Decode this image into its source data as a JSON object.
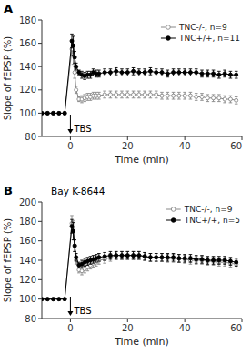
{
  "chart_data": [
    {
      "type": "line",
      "title": "A",
      "xlabel": "Time (min)",
      "ylabel": "Slope of fEPSP (%)",
      "xlim": [
        -10,
        60
      ],
      "xticks": [
        0,
        20,
        40,
        60
      ],
      "ylim": [
        80,
        180
      ],
      "yticks": [
        80,
        100,
        120,
        140,
        160,
        180
      ],
      "grid": false,
      "legend": "upper right",
      "annotations": [
        {
          "text": "TBS",
          "x": 0
        }
      ],
      "series": [
        {
          "name": "TNC-/-, n=9",
          "color": "#888888",
          "marker": "open-circle",
          "x": [
            -10,
            -8,
            -6,
            -4,
            -2,
            0.5,
            1,
            1.5,
            2,
            3,
            4,
            5,
            6,
            7,
            8,
            9,
            10,
            12,
            14,
            16,
            18,
            20,
            22,
            24,
            26,
            28,
            30,
            32,
            34,
            36,
            38,
            40,
            42,
            44,
            46,
            48,
            50,
            52,
            54,
            56,
            58
          ],
          "values": [
            100,
            100,
            100,
            100,
            100,
            155,
            150,
            135,
            120,
            112,
            112,
            113,
            114,
            114,
            115,
            115,
            115,
            116,
            116,
            116,
            116,
            116,
            116,
            116,
            116,
            116,
            116,
            115,
            115,
            115,
            115,
            115,
            115,
            114,
            114,
            113,
            113,
            113,
            112,
            112,
            111
          ],
          "errors": [
            1,
            1,
            1,
            1,
            1,
            6,
            8,
            5,
            3,
            2,
            3,
            3,
            3,
            3,
            3,
            3,
            3,
            3,
            3,
            3,
            3,
            3,
            3,
            3,
            3,
            3,
            3,
            3,
            3,
            3,
            3,
            3,
            3,
            3,
            3,
            3,
            3,
            3,
            3,
            3,
            3
          ]
        },
        {
          "name": "TNC+/+, n=11",
          "color": "#000000",
          "marker": "circle",
          "x": [
            -10,
            -8,
            -6,
            -4,
            -2,
            0.5,
            1,
            1.5,
            2,
            3,
            4,
            5,
            6,
            7,
            8,
            9,
            10,
            12,
            14,
            16,
            18,
            20,
            22,
            24,
            26,
            28,
            30,
            32,
            34,
            36,
            38,
            40,
            42,
            44,
            46,
            48,
            50,
            52,
            54,
            56,
            58
          ],
          "values": [
            100,
            100,
            100,
            100,
            100,
            162,
            158,
            148,
            140,
            135,
            133,
            132,
            133,
            133,
            135,
            134,
            134,
            135,
            135,
            136,
            135,
            135,
            136,
            135,
            135,
            136,
            135,
            135,
            134,
            135,
            135,
            135,
            135,
            135,
            134,
            134,
            134,
            133,
            134,
            133,
            133
          ],
          "errors": [
            1,
            1,
            1,
            1,
            1,
            6,
            8,
            5,
            3,
            2,
            3,
            3,
            3,
            3,
            3,
            3,
            3,
            3,
            3,
            3,
            3,
            3,
            3,
            3,
            3,
            3,
            3,
            3,
            3,
            3,
            3,
            3,
            3,
            3,
            3,
            3,
            3,
            3,
            3,
            3,
            3
          ]
        }
      ]
    },
    {
      "type": "line",
      "title": "B",
      "xlabel": "Time (min)",
      "ylabel": "Slope of fEPSP (%)",
      "xlim": [
        -10,
        60
      ],
      "xticks": [
        0,
        20,
        40,
        60
      ],
      "ylim": [
        80,
        200
      ],
      "yticks": [
        80,
        100,
        120,
        140,
        160,
        180,
        200
      ],
      "grid": false,
      "legend": "upper right",
      "annotations": [
        {
          "text": "Bay K-8644"
        },
        {
          "text": "TBS",
          "x": 0
        }
      ],
      "series": [
        {
          "name": "TNC-/-, n=9",
          "color": "#888888",
          "marker": "open-circle",
          "x": [
            -10,
            -8,
            -6,
            -4,
            -2,
            0.5,
            1,
            1.5,
            2,
            3,
            4,
            5,
            6,
            7,
            8,
            9,
            10,
            12,
            14,
            16,
            18,
            20,
            22,
            24,
            26,
            28,
            30,
            32,
            34,
            36,
            38,
            40,
            42,
            44,
            46,
            48,
            50,
            52,
            54,
            56,
            58
          ],
          "values": [
            100,
            100,
            100,
            100,
            100,
            178,
            172,
            155,
            140,
            130,
            129,
            131,
            133,
            135,
            137,
            138,
            140,
            141,
            143,
            145,
            145,
            145,
            145,
            145,
            144,
            143,
            143,
            143,
            142,
            142,
            142,
            141,
            140,
            140,
            140,
            139,
            139,
            138,
            138,
            137,
            136
          ],
          "errors": [
            1,
            1,
            1,
            1,
            1,
            8,
            9,
            6,
            4,
            3,
            4,
            4,
            4,
            4,
            4,
            4,
            4,
            4,
            4,
            4,
            4,
            4,
            4,
            4,
            4,
            4,
            4,
            4,
            4,
            4,
            4,
            4,
            4,
            4,
            4,
            4,
            4,
            4,
            4,
            4,
            4
          ]
        },
        {
          "name": "TNC+/+, n=5",
          "color": "#000000",
          "marker": "circle",
          "x": [
            -10,
            -8,
            -6,
            -4,
            -2,
            0.5,
            1,
            1.5,
            2,
            3,
            4,
            5,
            6,
            7,
            8,
            9,
            10,
            12,
            14,
            16,
            18,
            20,
            22,
            24,
            26,
            28,
            30,
            32,
            34,
            36,
            38,
            40,
            42,
            44,
            46,
            48,
            50,
            52,
            54,
            56,
            58
          ],
          "values": [
            100,
            100,
            100,
            100,
            100,
            175,
            170,
            155,
            143,
            135,
            136,
            138,
            139,
            140,
            141,
            142,
            143,
            144,
            145,
            145,
            145,
            145,
            145,
            145,
            144,
            143,
            143,
            143,
            143,
            143,
            142,
            142,
            142,
            141,
            141,
            140,
            140,
            140,
            140,
            139,
            138
          ],
          "errors": [
            1,
            1,
            1,
            1,
            1,
            7,
            9,
            6,
            4,
            3,
            4,
            4,
            4,
            4,
            4,
            4,
            4,
            4,
            4,
            4,
            4,
            4,
            4,
            4,
            4,
            4,
            4,
            4,
            4,
            4,
            4,
            4,
            4,
            4,
            4,
            4,
            4,
            4,
            4,
            4,
            4
          ]
        }
      ]
    }
  ]
}
